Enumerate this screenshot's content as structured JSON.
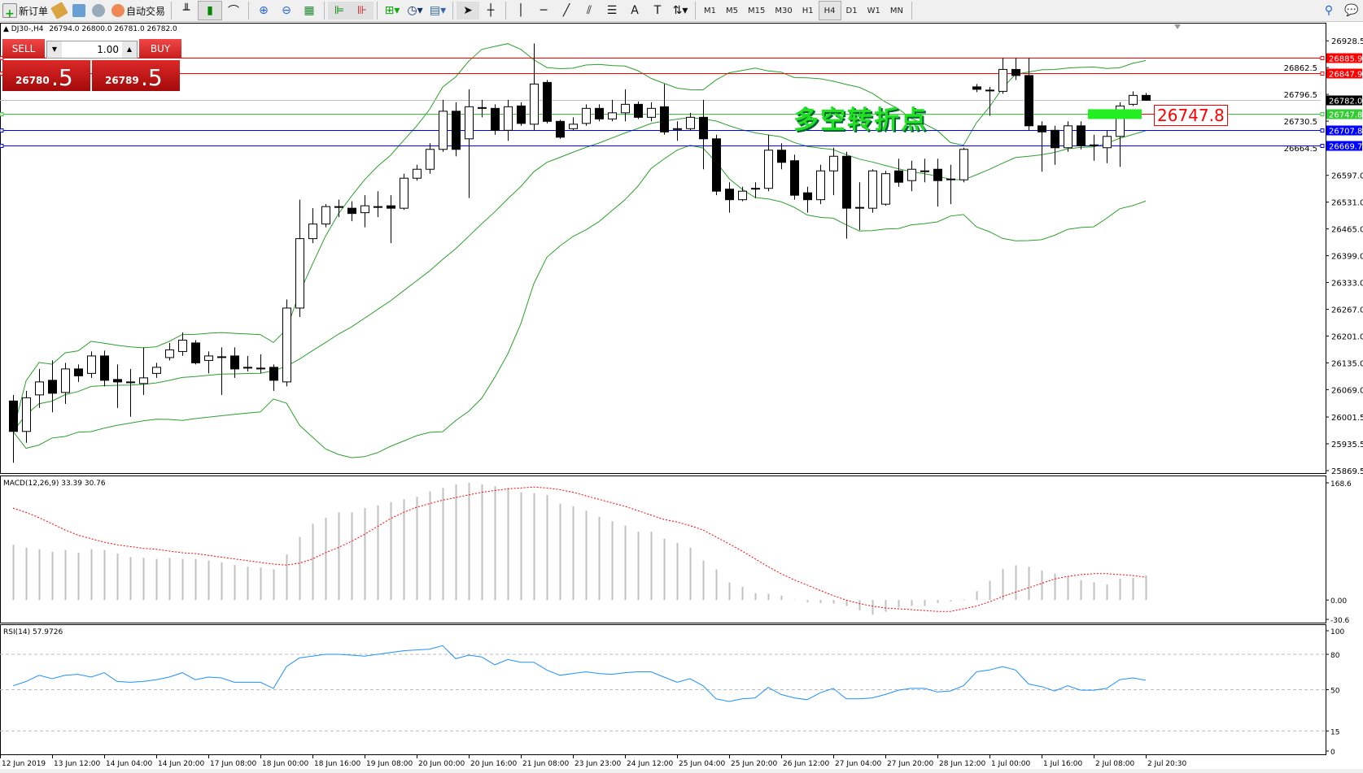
{
  "toolbar": {
    "new_order": "新订单",
    "auto_trading": "自动交易",
    "timeframes": [
      "M1",
      "M5",
      "M15",
      "M30",
      "H1",
      "H4",
      "D1",
      "W1",
      "MN"
    ],
    "active_timeframe": "H4"
  },
  "chart_header": {
    "symbol": "DJ30-,H4",
    "ohlc": "26794.0 26800.0 26781.0 26782.0"
  },
  "one_click": {
    "sell_label": "SELL",
    "buy_label": "BUY",
    "lot": "1.00",
    "sell_main": "26780",
    "sell_frac": ".5",
    "buy_main": "26789",
    "buy_frac": ".5"
  },
  "annotation": {
    "text": "多空转折点",
    "label": "26747.8",
    "color": "#22e022"
  },
  "chart_data": [
    {
      "type": "candlestick",
      "symbol": "DJ30-",
      "timeframe": "H4",
      "ylim": [
        25855,
        26965
      ],
      "price_ticks": [
        "26928.5",
        "26862.5",
        "26796.5",
        "26730.5",
        "26664.5",
        "26597.0",
        "26531.0",
        "26465.0",
        "26399.0",
        "26333.0",
        "26267.0",
        "26201.0",
        "26135.0",
        "26069.0",
        "26001.5",
        "25935.5",
        "25869.5"
      ],
      "time_labels": [
        "12 Jun 2019",
        "13 Jun 12:00",
        "14 Jun 04:00",
        "14 Jun 20:00",
        "17 Jun 08:00",
        "18 Jun 00:00",
        "18 Jun 16:00",
        "19 Jun 08:00",
        "20 Jun 00:00",
        "20 Jun 16:00",
        "21 Jun 08:00",
        "23 Jun 23:00",
        "24 Jun 12:00",
        "25 Jun 04:00",
        "25 Jun 20:00",
        "26 Jun 12:00",
        "27 Jun 04:00",
        "27 Jun 20:00",
        "28 Jun 12:00",
        "1 Jul 00:00",
        "1 Jul 16:00",
        "2 Jul 08:00",
        "2 Jul 20:30"
      ],
      "ohlc": [
        [
          26041,
          26056,
          25889,
          25966
        ],
        [
          25966,
          26066,
          25938,
          26049
        ],
        [
          26056,
          26120,
          26024,
          26088
        ],
        [
          26092,
          26141,
          26013,
          26060
        ],
        [
          26062,
          26135,
          26034,
          26120
        ],
        [
          26120,
          26131,
          26088,
          26103
        ],
        [
          26109,
          26163,
          26098,
          26152
        ],
        [
          26152,
          26165,
          26077,
          26092
        ],
        [
          26094,
          26131,
          26024,
          26088
        ],
        [
          26088,
          26120,
          26002,
          26086
        ],
        [
          26084,
          26173,
          26056,
          26098
        ],
        [
          26109,
          26135,
          26098,
          26124
        ],
        [
          26148,
          26184,
          26141,
          26167
        ],
        [
          26163,
          26210,
          26152,
          26191
        ],
        [
          26184,
          26191,
          26131,
          26135
        ],
        [
          26141,
          26163,
          26109,
          26152
        ],
        [
          26148,
          26173,
          26056,
          26150
        ],
        [
          26152,
          26173,
          26098,
          26120
        ],
        [
          26122,
          26152,
          26114,
          26124
        ],
        [
          26122,
          26156,
          26109,
          26120
        ],
        [
          26124,
          26131,
          26066,
          26092
        ],
        [
          26088,
          26291,
          26077,
          26270
        ],
        [
          26270,
          26537,
          26248,
          26441
        ],
        [
          26441,
          26516,
          26430,
          26477
        ],
        [
          26477,
          26526,
          26469,
          26520
        ],
        [
          26518,
          26537,
          26494,
          26520
        ],
        [
          26516,
          26533,
          26484,
          26503
        ],
        [
          26505,
          26548,
          26469,
          26522
        ],
        [
          26520,
          26558,
          26494,
          26518
        ],
        [
          26522,
          26548,
          26430,
          26516
        ],
        [
          26516,
          26601,
          26512,
          26590
        ],
        [
          26590,
          26623,
          26584,
          26612
        ],
        [
          26612,
          26676,
          26601,
          26661
        ],
        [
          26661,
          26783,
          26655,
          26755
        ],
        [
          26755,
          26777,
          26644,
          26661
        ],
        [
          26687,
          26809,
          26541,
          26766
        ],
        [
          26762,
          26783,
          26740,
          26764
        ],
        [
          26762,
          26772,
          26697,
          26708
        ],
        [
          26708,
          26783,
          26682,
          26766
        ],
        [
          26768,
          26777,
          26719,
          26725
        ],
        [
          26723,
          26922,
          26708,
          26822
        ],
        [
          26826,
          26832,
          26725,
          26730
        ],
        [
          26730,
          26734,
          26687,
          26691
        ],
        [
          26712,
          26740,
          26708,
          26723
        ],
        [
          26725,
          26772,
          26719,
          26762
        ],
        [
          26762,
          26772,
          26730,
          26736
        ],
        [
          26736,
          26783,
          26730,
          26751
        ],
        [
          26751,
          26809,
          26730,
          26772
        ],
        [
          26772,
          26779,
          26736,
          26740
        ],
        [
          26740,
          26777,
          26730,
          26762
        ],
        [
          26766,
          26822,
          26697,
          26704
        ],
        [
          26712,
          26730,
          26682,
          26710
        ],
        [
          26712,
          26751,
          26708,
          26740
        ],
        [
          26740,
          26783,
          26612,
          26687
        ],
        [
          26687,
          26697,
          26548,
          26558
        ],
        [
          26563,
          26580,
          26505,
          26537
        ],
        [
          26537,
          26569,
          26533,
          26558
        ],
        [
          26565,
          26580,
          26541,
          26563
        ],
        [
          26565,
          26697,
          26558,
          26659
        ],
        [
          26659,
          26676,
          26612,
          26629
        ],
        [
          26633,
          26648,
          26537,
          26548
        ],
        [
          26554,
          26569,
          26505,
          26537
        ],
        [
          26537,
          26623,
          26526,
          26608
        ],
        [
          26608,
          26665,
          26548,
          26644
        ],
        [
          26644,
          26655,
          26441,
          26516
        ],
        [
          26516,
          26580,
          26462,
          26518
        ],
        [
          26516,
          26612,
          26505,
          26608
        ],
        [
          26526,
          26608,
          26522,
          26601
        ],
        [
          26608,
          26638,
          26569,
          26580
        ],
        [
          26584,
          26633,
          26558,
          26612
        ],
        [
          26606,
          26638,
          26580,
          26608
        ],
        [
          26612,
          26638,
          26520,
          26584
        ],
        [
          26586,
          26623,
          26526,
          26588
        ],
        [
          26586,
          26665,
          26580,
          26661
        ],
        [
          26815,
          26822,
          26802,
          26809
        ],
        [
          26806,
          26815,
          26744,
          26807
        ],
        [
          26804,
          26886,
          26798,
          26858
        ],
        [
          26858,
          26886,
          26832,
          26843
        ],
        [
          26843,
          26886,
          26708,
          26719
        ],
        [
          26719,
          26730,
          26606,
          26704
        ],
        [
          26708,
          26719,
          26623,
          26665
        ],
        [
          26665,
          26730,
          26655,
          26719
        ],
        [
          26719,
          26730,
          26661,
          26670
        ],
        [
          26672,
          26697,
          26633,
          26670
        ],
        [
          26665,
          26708,
          26627,
          26693
        ],
        [
          26693,
          26777,
          26618,
          26768
        ],
        [
          26772,
          26804,
          26768,
          26794
        ],
        [
          26794,
          26800,
          26781,
          26782
        ]
      ],
      "overlay": {
        "type": "bollinger",
        "period": 20,
        "deviation": 2,
        "color": "#2ca02c"
      },
      "levels": [
        {
          "price": "26885.9",
          "color": "#ff0000"
        },
        {
          "price": "26847.9",
          "color": "#ff0000"
        },
        {
          "price": "26782.0",
          "color": "#000000",
          "line_color": "#c0c0c0"
        },
        {
          "price": "26747.8",
          "color": "#33cc33"
        },
        {
          "price": "26707.8",
          "color": "#0000ff"
        },
        {
          "price": "26669.7",
          "color": "#0000ff"
        }
      ],
      "grid": false
    },
    {
      "type": "bar",
      "title": "MACD(12,26,9) 33.39 30.76",
      "ylim": [
        -30.6,
        168.6
      ],
      "ticks": [
        "168.6",
        "0.00",
        "-30.6"
      ],
      "histogram": [
        74.7,
        71.2,
        68.8,
        65.2,
        67.6,
        64.0,
        68.8,
        67.6,
        62.9,
        58.1,
        56.9,
        55.7,
        56.9,
        55.7,
        55.7,
        53.4,
        51.0,
        47.4,
        45.1,
        43.9,
        41.5,
        61.7,
        85.4,
        103.2,
        111.5,
        118.6,
        118.6,
        124.5,
        128.1,
        132.8,
        136.4,
        139.9,
        147.1,
        151.8,
        156.6,
        158.9,
        156.6,
        154.2,
        151.8,
        145.9,
        144.7,
        142.3,
        130.5,
        126.9,
        121.0,
        112.7,
        106.7,
        100.8,
        92.5,
        92.5,
        83.0,
        77.1,
        71.2,
        53.4,
        41.5,
        23.7,
        17.8,
        9.5,
        8.3,
        5.9,
        0.5,
        -3,
        -4,
        -5,
        -8,
        -14,
        -20,
        -16,
        -10,
        -8,
        -8,
        -4,
        -2,
        1,
        12,
        26,
        42,
        47,
        45,
        40,
        36,
        32,
        27,
        24,
        21,
        29,
        30,
        33.39
      ],
      "signal": [
        124.5,
        118.6,
        111.5,
        103.2,
        94.9,
        87.8,
        83.0,
        78.3,
        74.7,
        72.4,
        70.0,
        68.8,
        66.4,
        64.0,
        62.9,
        60.5,
        58.1,
        55.7,
        53.4,
        51.0,
        48.6,
        47.4,
        49.8,
        55.7,
        64.0,
        71.2,
        79.5,
        88.9,
        99.6,
        110.3,
        118.6,
        125.7,
        130.5,
        135.2,
        138.8,
        142.3,
        145.9,
        148.2,
        150.6,
        151.8,
        153.0,
        151.8,
        149.4,
        145.9,
        141.1,
        136.4,
        131.6,
        126.9,
        121.0,
        115.0,
        109.1,
        105.6,
        100.8,
        94.9,
        85.4,
        75.9,
        66.4,
        55.7,
        45.1,
        35.6,
        27.3,
        20.2,
        13.0,
        5.9,
        0,
        -4.7,
        -8.3,
        -10.7,
        -11.9,
        -13.0,
        -14.2,
        -15.4,
        -15.4,
        -11.9,
        -8.3,
        -2.4,
        4.7,
        10.7,
        16.6,
        22.5,
        28.5,
        32.0,
        34.4,
        35.6,
        35.6,
        34.4,
        33.2,
        30.76
      ],
      "histogram_color": "#c0c0c0",
      "signal_color": "#ff0000"
    },
    {
      "type": "line",
      "title": "RSI(14) 57.9726",
      "ylim": [
        0,
        100
      ],
      "ticks": [
        "100",
        "80",
        "50",
        "15",
        "0"
      ],
      "levels": [
        80,
        50,
        15
      ],
      "values": [
        53.3,
        57.0,
        62.2,
        59.3,
        62.2,
        63.0,
        60.7,
        64.4,
        57.0,
        56.3,
        57.0,
        58.5,
        60.7,
        64.4,
        58.5,
        60.7,
        60.0,
        56.3,
        56.3,
        56.3,
        51.1,
        69.6,
        77.0,
        78.5,
        80.0,
        80.0,
        79.3,
        78.5,
        80.0,
        81.5,
        83.0,
        83.7,
        84.4,
        87.4,
        76.3,
        79.3,
        77.8,
        71.1,
        75.6,
        73.3,
        73.3,
        66.7,
        62.2,
        63.7,
        65.2,
        63.7,
        63.0,
        64.4,
        65.2,
        65.2,
        60.7,
        56.3,
        59.3,
        53.3,
        42.2,
        40.0,
        42.2,
        43.0,
        51.9,
        45.9,
        43.0,
        41.5,
        47.4,
        51.1,
        42.2,
        42.2,
        43.0,
        45.9,
        49.6,
        51.1,
        51.1,
        48.1,
        48.9,
        53.3,
        65.2,
        66.7,
        69.6,
        66.7,
        54.8,
        52.6,
        48.9,
        53.3,
        49.6,
        49.6,
        51.1,
        58.5,
        60.0,
        57.97
      ],
      "color": "#1e90ff"
    }
  ]
}
